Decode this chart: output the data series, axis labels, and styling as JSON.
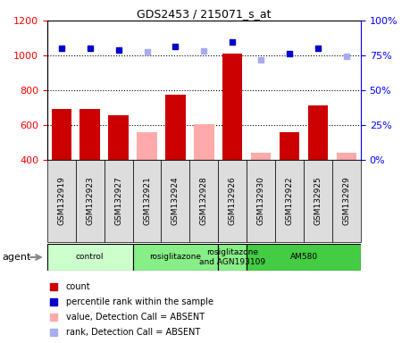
{
  "title": "GDS2453 / 215071_s_at",
  "samples": [
    "GSM132919",
    "GSM132923",
    "GSM132927",
    "GSM132921",
    "GSM132924",
    "GSM132928",
    "GSM132926",
    "GSM132930",
    "GSM132922",
    "GSM132925",
    "GSM132929"
  ],
  "detection_call": [
    "P",
    "P",
    "P",
    "A",
    "P",
    "A",
    "P",
    "A",
    "P",
    "P",
    "A"
  ],
  "bar_values": [
    690,
    690,
    655,
    555,
    775,
    605,
    1010,
    440,
    555,
    710,
    440
  ],
  "rank_values": [
    1040,
    1040,
    1030,
    1020,
    1050,
    1025,
    1075,
    975,
    1010,
    1040,
    995
  ],
  "ylim_left": [
    400,
    1200
  ],
  "ylim_right": [
    0,
    100
  ],
  "yticks_left": [
    400,
    600,
    800,
    1000,
    1200
  ],
  "yticks_right": [
    0,
    25,
    50,
    75,
    100
  ],
  "groups": [
    {
      "label": "control",
      "start": 0,
      "end": 3,
      "color": "#ccffcc"
    },
    {
      "label": "rosiglitazone",
      "start": 3,
      "end": 6,
      "color": "#88ee88"
    },
    {
      "label": "rosiglitazone\nand AGN193109",
      "start": 6,
      "end": 7,
      "color": "#88ee88"
    },
    {
      "label": "AM580",
      "start": 7,
      "end": 11,
      "color": "#44cc44"
    }
  ],
  "bar_color_present": "#cc0000",
  "bar_color_absent": "#ffaaaa",
  "rank_color_present": "#0000cc",
  "rank_color_absent": "#aaaaee",
  "agent_label": "agent",
  "legend_items": [
    {
      "color": "#cc0000",
      "label": "count"
    },
    {
      "color": "#0000cc",
      "label": "percentile rank within the sample"
    },
    {
      "color": "#ffaaaa",
      "label": "value, Detection Call = ABSENT"
    },
    {
      "color": "#aaaaee",
      "label": "rank, Detection Call = ABSENT"
    }
  ]
}
